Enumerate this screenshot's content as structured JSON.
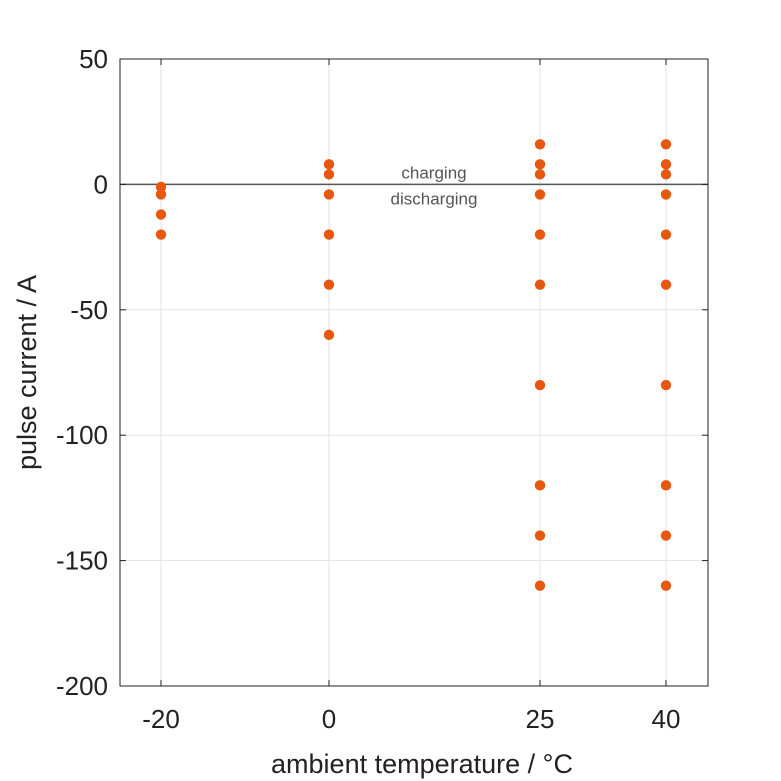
{
  "chart_data": {
    "type": "scatter",
    "xlabel": "ambient temperature / °C",
    "ylabel": "pulse current / A",
    "x_ticks": [
      -20,
      0,
      25,
      40
    ],
    "y_ticks": [
      50,
      0,
      -50,
      -100,
      -150,
      -200
    ],
    "ylim": [
      -200,
      50
    ],
    "grid": true,
    "marker_color": "#e8570e",
    "reference_line": {
      "y": 0,
      "label_above": "charging",
      "label_below": "discharging"
    },
    "series": [
      {
        "points": [
          [
            -20,
            -1
          ],
          [
            -20,
            -4
          ],
          [
            -20,
            -12
          ],
          [
            -20,
            -20
          ],
          [
            0,
            8
          ],
          [
            0,
            4
          ],
          [
            0,
            -4
          ],
          [
            0,
            -20
          ],
          [
            0,
            -40
          ],
          [
            0,
            -60
          ],
          [
            25,
            16
          ],
          [
            25,
            8
          ],
          [
            25,
            4
          ],
          [
            25,
            -4
          ],
          [
            25,
            -20
          ],
          [
            25,
            -40
          ],
          [
            25,
            -80
          ],
          [
            25,
            -120
          ],
          [
            25,
            -140
          ],
          [
            25,
            -160
          ],
          [
            40,
            16
          ],
          [
            40,
            8
          ],
          [
            40,
            4
          ],
          [
            40,
            -4
          ],
          [
            40,
            -20
          ],
          [
            40,
            -40
          ],
          [
            40,
            -80
          ],
          [
            40,
            -120
          ],
          [
            40,
            -140
          ],
          [
            40,
            -160
          ]
        ]
      }
    ]
  }
}
